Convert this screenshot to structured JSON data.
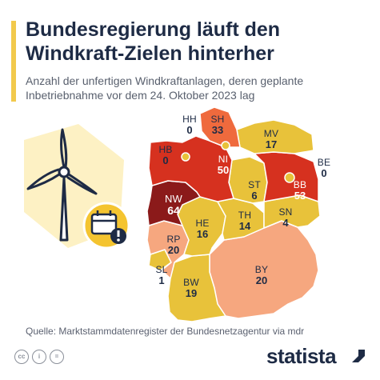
{
  "header": {
    "title": "Bundesregierung läuft den Windkraft-Zielen hinterher",
    "subtitle": "Anzahl der unfertigen Windkraftanlagen, deren geplante Inbetriebnahme vor dem 24. Oktober 2023 lag"
  },
  "states": {
    "sh": {
      "abbr": "SH",
      "value": "33"
    },
    "hh": {
      "abbr": "HH",
      "value": "0"
    },
    "mv": {
      "abbr": "MV",
      "value": "17"
    },
    "hb": {
      "abbr": "HB",
      "value": "0"
    },
    "ni": {
      "abbr": "NI",
      "value": "50"
    },
    "be": {
      "abbr": "BE",
      "value": "0"
    },
    "st": {
      "abbr": "ST",
      "value": "6"
    },
    "bb": {
      "abbr": "BB",
      "value": "53"
    },
    "nw": {
      "abbr": "NW",
      "value": "64"
    },
    "th": {
      "abbr": "TH",
      "value": "14"
    },
    "sn": {
      "abbr": "SN",
      "value": "4"
    },
    "he": {
      "abbr": "HE",
      "value": "16"
    },
    "rp": {
      "abbr": "RP",
      "value": "20"
    },
    "sl": {
      "abbr": "SL",
      "value": "1"
    },
    "bw": {
      "abbr": "BW",
      "value": "19"
    },
    "by": {
      "abbr": "BY",
      "value": "20"
    }
  },
  "colors": {
    "high": "#8b1a1a",
    "upper": "#d6311f",
    "mid": "#ef6a3d",
    "low": "#f6a77f",
    "lowest": "#e8c23a",
    "accent": "#f2c94c"
  },
  "icons": {
    "wind_turbine": "wind-turbine-icon",
    "calendar_warning": "calendar-warning-icon"
  },
  "source": "Quelle: Marktstammdatenregister der Bundesnetzagentur via mdr",
  "brand": "statista"
}
